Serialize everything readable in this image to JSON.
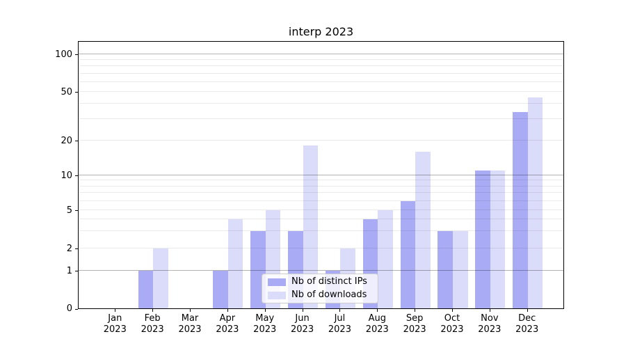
{
  "title": "interp 2023",
  "legend": {
    "items": [
      "Nb of distinct IPs",
      "Nb of downloads"
    ]
  },
  "colors": {
    "distinct_ips": "#a9abf5",
    "downloads": "#dbdcfa"
  },
  "chart_data": {
    "type": "bar",
    "title": "interp 2023",
    "categories": [
      "Jan 2023",
      "Feb 2023",
      "Mar 2023",
      "Apr 2023",
      "May 2023",
      "Jun 2023",
      "Jul 2023",
      "Aug 2023",
      "Sep 2023",
      "Oct 2023",
      "Nov 2023",
      "Dec 2023"
    ],
    "series": [
      {
        "name": "Nb of distinct IPs",
        "color": "#a9abf5",
        "values": [
          0,
          1,
          0,
          1,
          3,
          3,
          1,
          4,
          6,
          3,
          11,
          34
        ]
      },
      {
        "name": "Nb of downloads",
        "color": "#dbdcfa",
        "values": [
          0,
          2,
          0,
          4,
          5,
          18,
          2,
          5,
          16,
          3,
          11,
          45
        ]
      }
    ],
    "xlabel": "",
    "ylabel": "",
    "yscale": "log above 1, linear 0-1 (symlog-like)",
    "yticks": [
      0,
      1,
      2,
      5,
      10,
      20,
      50,
      100
    ],
    "ytick_anchors": [
      [
        0,
        0
      ],
      [
        1,
        0.1403
      ],
      [
        2,
        0.2242
      ],
      [
        5,
        0.367
      ],
      [
        10,
        0.4969
      ],
      [
        20,
        0.6268
      ],
      [
        50,
        0.8086
      ],
      [
        100,
        0.9481
      ]
    ],
    "minor_gridlines": [
      2,
      3,
      4,
      5,
      6,
      7,
      8,
      9,
      20,
      30,
      40,
      50,
      60,
      70,
      80,
      90
    ],
    "major_gridlines": [
      1,
      10,
      100
    ],
    "ylim": [
      0,
      120
    ],
    "grid": true,
    "legend_position": "lower center"
  }
}
